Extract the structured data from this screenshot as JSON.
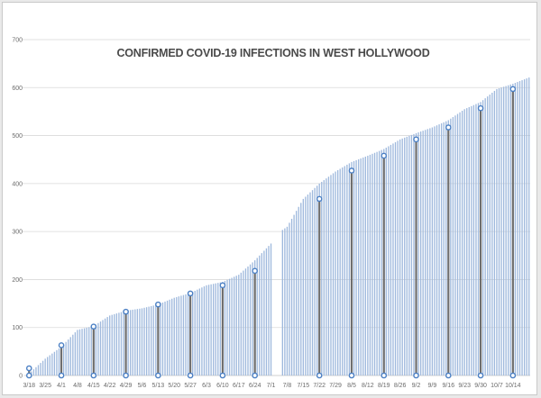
{
  "chart_data": {
    "type": "bar",
    "title": "CONFIRMED COVID-19 INFECTIONS IN WEST HOLLYWOOD",
    "xlabel": "",
    "ylabel": "",
    "ylim": [
      0,
      700
    ],
    "yticks": [
      0,
      100,
      200,
      300,
      400,
      500,
      600,
      700
    ],
    "grid": true,
    "legend": "none",
    "bar_color": "#9fb9dd",
    "highlight_color": "#6e6e6e",
    "marker_color": "#4a7fc4",
    "x_start": "3/18",
    "x_ticks": [
      "3/18",
      "3/25",
      "4/1",
      "4/8",
      "4/15",
      "4/22",
      "4/29",
      "5/6",
      "5/13",
      "5/20",
      "5/27",
      "6/3",
      "6/10",
      "6/17",
      "6/24",
      "7/1",
      "7/8",
      "7/15",
      "7/22",
      "7/29",
      "8/5",
      "8/12",
      "8/19",
      "8/26",
      "9/2",
      "9/9",
      "9/16",
      "9/23",
      "9/30",
      "10/7",
      "10/14"
    ],
    "anchors": [
      [
        "3/18",
        4
      ],
      [
        "3/25",
        35
      ],
      [
        "4/1",
        60
      ],
      [
        "4/8",
        95
      ],
      [
        "4/15",
        103
      ],
      [
        "4/22",
        125
      ],
      [
        "4/29",
        135
      ],
      [
        "5/6",
        140
      ],
      [
        "5/13",
        148
      ],
      [
        "5/20",
        162
      ],
      [
        "5/27",
        172
      ],
      [
        "6/3",
        188
      ],
      [
        "6/10",
        195
      ],
      [
        "6/17",
        210
      ],
      [
        "6/24",
        240
      ],
      [
        "7/1",
        275
      ],
      [
        "7/2",
        290
      ],
      [
        "7/8",
        310
      ],
      [
        "7/15",
        368
      ],
      [
        "7/22",
        400
      ],
      [
        "7/29",
        425
      ],
      [
        "8/5",
        445
      ],
      [
        "8/12",
        458
      ],
      [
        "8/19",
        472
      ],
      [
        "8/26",
        492
      ],
      [
        "9/2",
        505
      ],
      [
        "9/9",
        517
      ],
      [
        "9/16",
        532
      ],
      [
        "9/23",
        555
      ],
      [
        "9/30",
        570
      ],
      [
        "10/7",
        597
      ],
      [
        "10/14",
        608
      ],
      [
        "10/21",
        621
      ]
    ],
    "missing_days": [
      "7/2",
      "7/3",
      "7/4",
      "7/5"
    ],
    "highlights": [
      [
        "3/18",
        15
      ],
      [
        "4/1",
        63
      ],
      [
        "4/15",
        102
      ],
      [
        "4/29",
        133
      ],
      [
        "5/13",
        148
      ],
      [
        "5/27",
        171
      ],
      [
        "6/10",
        188
      ],
      [
        "6/24",
        218
      ],
      [
        "7/22",
        368
      ],
      [
        "8/5",
        427
      ],
      [
        "8/19",
        458
      ],
      [
        "9/2",
        492
      ],
      [
        "9/16",
        517
      ],
      [
        "9/30",
        557
      ],
      [
        "10/14",
        597
      ]
    ]
  }
}
